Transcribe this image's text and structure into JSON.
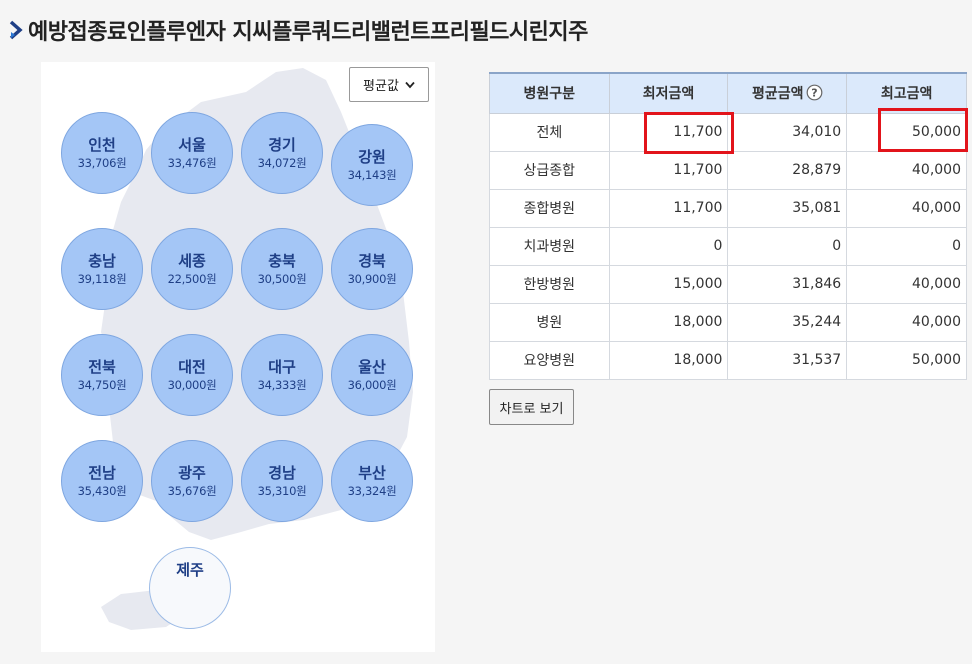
{
  "page": {
    "title": "예방접종료인플루엔자 지씨플루쿼드리밸런트프리필드시린지주"
  },
  "map": {
    "select_value": "평균값",
    "regions": [
      {
        "name": "인천",
        "amount": "33,706원"
      },
      {
        "name": "서울",
        "amount": "33,476원"
      },
      {
        "name": "경기",
        "amount": "34,072원"
      },
      {
        "name": "강원",
        "amount": "34,143원"
      },
      {
        "name": "충남",
        "amount": "39,118원"
      },
      {
        "name": "세종",
        "amount": "22,500원"
      },
      {
        "name": "충북",
        "amount": "30,500원"
      },
      {
        "name": "경북",
        "amount": "30,900원"
      },
      {
        "name": "전북",
        "amount": "34,750원"
      },
      {
        "name": "대전",
        "amount": "30,000원"
      },
      {
        "name": "대구",
        "amount": "34,333원"
      },
      {
        "name": "울산",
        "amount": "36,000원"
      },
      {
        "name": "전남",
        "amount": "35,430원"
      },
      {
        "name": "광주",
        "amount": "35,676원"
      },
      {
        "name": "경남",
        "amount": "35,310원"
      },
      {
        "name": "부산",
        "amount": "33,324원"
      },
      {
        "name": "제주",
        "amount": ""
      }
    ]
  },
  "table": {
    "headers": [
      "병원구분",
      "최저금액",
      "평균금액",
      "최고금액"
    ],
    "rows": [
      [
        "전체",
        "11,700",
        "34,010",
        "50,000"
      ],
      [
        "상급종합",
        "11,700",
        "28,879",
        "40,000"
      ],
      [
        "종합병원",
        "11,700",
        "35,081",
        "40,000"
      ],
      [
        "치과병원",
        "0",
        "0",
        "0"
      ],
      [
        "한방병원",
        "15,000",
        "31,846",
        "40,000"
      ],
      [
        "병원",
        "18,000",
        "35,244",
        "40,000"
      ],
      [
        "요양병원",
        "18,000",
        "31,537",
        "50,000"
      ]
    ]
  },
  "actions": {
    "chart_button": "차트로 보기"
  },
  "colors": {
    "bubble_fill": "#a4c6f6",
    "header_fill": "#dbe9fb",
    "highlight": "#e2141b"
  }
}
